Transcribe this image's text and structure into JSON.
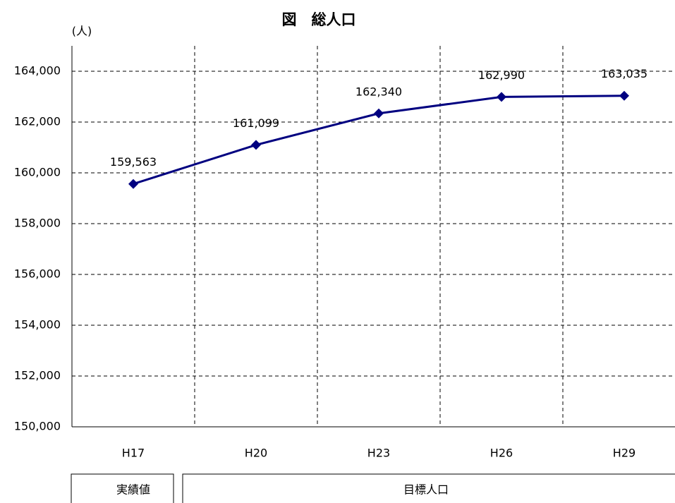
{
  "chart_data": {
    "type": "line",
    "title": "図　総人口",
    "y_label": "(人)",
    "categories": [
      "H17",
      "H20",
      "H23",
      "H26",
      "H29"
    ],
    "series": [
      {
        "name": "総人口",
        "color": "#000080",
        "values": [
          159563,
          161099,
          162340,
          162990,
          163035
        ],
        "value_labels": [
          "159,563",
          "161,099",
          "162,340",
          "162,990",
          "163,035"
        ]
      }
    ],
    "ylim": [
      150000,
      165000
    ],
    "yticks": [
      {
        "value": 150000,
        "label": "150,000"
      },
      {
        "value": 152000,
        "label": "152,000"
      },
      {
        "value": 154000,
        "label": "154,000"
      },
      {
        "value": 156000,
        "label": "156,000"
      },
      {
        "value": 158000,
        "label": "158,000"
      },
      {
        "value": 160000,
        "label": "160,000"
      },
      {
        "value": 162000,
        "label": "162,000"
      },
      {
        "value": 164000,
        "label": "164,000"
      }
    ],
    "grid": true,
    "period_labels": [
      "実績値",
      "目標人口"
    ]
  }
}
